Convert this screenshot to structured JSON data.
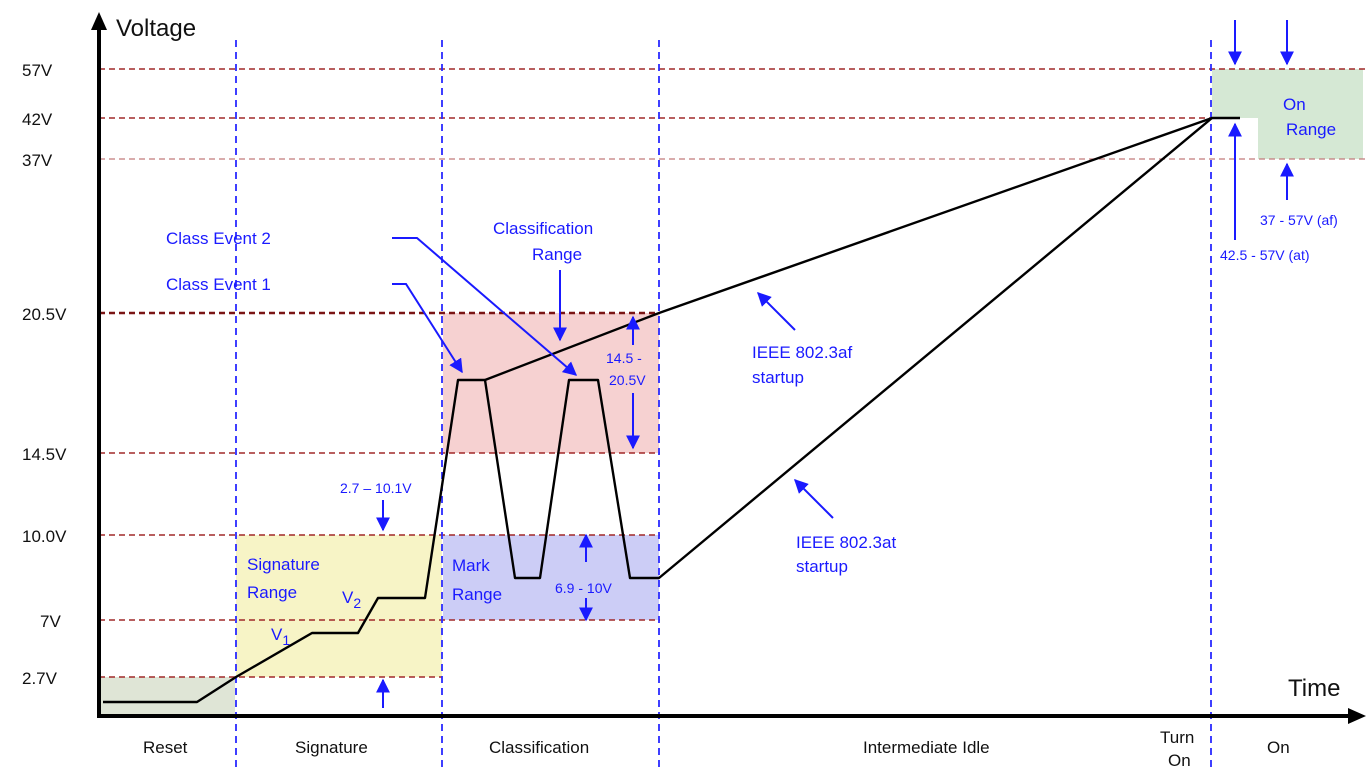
{
  "axes": {
    "y_title": "Voltage",
    "x_title": "Time",
    "y_ticks": [
      "57V",
      "42V",
      "37V",
      "20.5V",
      "14.5V",
      "10.0V",
      "7V",
      "2.7V"
    ]
  },
  "phases": {
    "reset": "Reset",
    "signature": "Signature",
    "classification": "Classification",
    "idle": "Intermediate Idle",
    "turn_on_1": "Turn",
    "turn_on_2": "On",
    "on": "On"
  },
  "regions": {
    "signature_1": "Signature",
    "signature_2": "Range",
    "mark_1": "Mark",
    "mark_2": "Range",
    "on_1": "On",
    "on_2": "Range",
    "classification_1": "Classification",
    "classification_2": "Range"
  },
  "labels": {
    "class_event_2": "Class Event 2",
    "class_event_1": "Class Event 1",
    "v1_main": "V",
    "v1_sub": "1",
    "v2_main": "V",
    "v2_sub": "2",
    "sig_range": "2.7 – 10.1V",
    "class_range_1": "14.5 -",
    "class_range_2": "20.5V",
    "mark_range": "6.9 - 10V",
    "af_startup_1": "IEEE 802.3af",
    "af_startup_2": "startup",
    "at_startup_1": "IEEE 802.3at",
    "at_startup_2": "startup",
    "on_af_range": "37 - 57V (af)",
    "on_at_range": "42.5 - 57V (at)"
  },
  "colors": {
    "signature_region": "#f7f4c6",
    "classification_region": "#f6d1d1",
    "mark_region": "#cccdf6",
    "on_region": "#d5e8d4",
    "reset_region": "#dfe5d6",
    "threshold_line": "#a02828",
    "phase_divider": "#2a2aff",
    "annotation": "#1a1aff"
  }
}
